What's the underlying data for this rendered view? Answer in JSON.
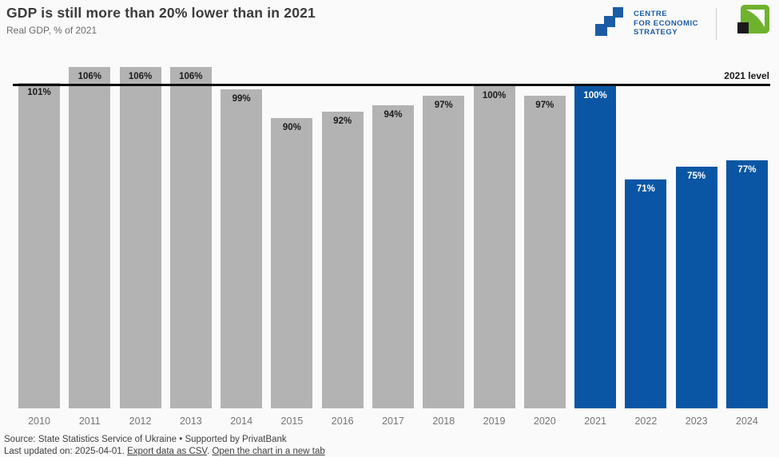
{
  "header": {
    "title": "GDP is still more than 20% lower than in 2021",
    "subtitle": "Real GDP, % of 2021",
    "ces_logo": {
      "lines": [
        "CENTRE",
        "FOR ECONOMIC",
        "STRATEGY"
      ]
    },
    "privatbank_logo": "privatbank-green-arrow-logo"
  },
  "chart_data": {
    "type": "bar",
    "categories": [
      "2010",
      "2011",
      "2012",
      "2013",
      "2014",
      "2015",
      "2016",
      "2017",
      "2018",
      "2019",
      "2020",
      "2021",
      "2022",
      "2023",
      "2024"
    ],
    "values": [
      101,
      106,
      106,
      106,
      99,
      90,
      92,
      94,
      97,
      100,
      97,
      100,
      71,
      75,
      77
    ],
    "value_labels": [
      "101%",
      "106%",
      "106%",
      "106%",
      "99%",
      "90%",
      "92%",
      "94%",
      "97%",
      "100%",
      "97%",
      "100%",
      "71%",
      "75%",
      "77%"
    ],
    "title": "GDP is still more than 20% lower than in 2021",
    "subtitle": "Real GDP, % of 2021",
    "xlabel": "",
    "ylabel": "Real GDP, % of 2021",
    "ylim": [
      0,
      109
    ],
    "grid": false,
    "legend": false,
    "reference_line": {
      "value": 100,
      "label": "2021 level"
    },
    "colors": {
      "default": "#b3b3b3",
      "highlight": "#0b56a4",
      "label_on_default": "#1a1a1a",
      "label_on_highlight": "#ffffff"
    },
    "highlight_categories": [
      "2021",
      "2022",
      "2023",
      "2024"
    ]
  },
  "footer": {
    "source_line": "Source: State Statistics Service of Ukraine • Supported by PrivatBank",
    "updated_prefix": "Last updated on: 2025-04-01.",
    "links": [
      {
        "label": "Export data as CSV"
      },
      {
        "label": "Open the chart in a new tab"
      }
    ],
    "link_separator": ". "
  }
}
